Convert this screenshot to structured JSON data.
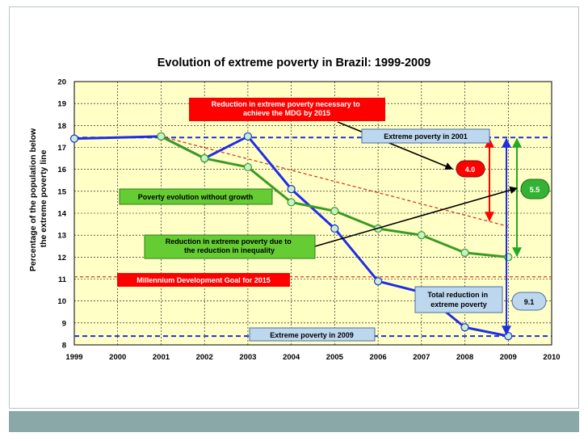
{
  "colors": {
    "plot_bg": "#ffffc6",
    "grid": "#000000",
    "blue_series": "#1f2ee6",
    "green_series": "#3a9b24",
    "red_dashed": "#d83a2a",
    "red_label_bg": "#ff0000",
    "green_label_bg": "#66cc33",
    "blue_label_bg": "#bdd7ee",
    "footer": "#8aa8a8"
  },
  "chart_data": {
    "type": "line",
    "title": "Evolution of extreme poverty in Brazil: 1999-2009",
    "ylabel_lines": [
      "Percentage of the population below",
      "the extreme poverty line"
    ],
    "xlabel": "",
    "xlim": [
      1999,
      2010
    ],
    "ylim": [
      8,
      20
    ],
    "grid": true,
    "x_ticks": [
      "1999",
      "2000",
      "2001",
      "2002",
      "2003",
      "2004",
      "2005",
      "2006",
      "2007",
      "2008",
      "2009",
      "2010"
    ],
    "y_ticks": [
      "8",
      "9",
      "10",
      "11",
      "12",
      "13",
      "14",
      "15",
      "16",
      "17",
      "18",
      "19",
      "20"
    ],
    "series": [
      {
        "style": "blue",
        "x": [
          1999,
          2001,
          2002,
          2003,
          2004,
          2005,
          2006,
          2007,
          2008,
          2009
        ],
        "values": [
          17.4,
          17.5,
          16.5,
          17.5,
          15.1,
          13.3,
          10.9,
          10.4,
          8.8,
          8.4
        ]
      },
      {
        "style": "green",
        "x": [
          2001,
          2002,
          2003,
          2004,
          2005,
          2006,
          2007,
          2008,
          2009
        ],
        "values": [
          17.5,
          16.5,
          16.1,
          14.5,
          14.1,
          13.3,
          13.0,
          12.2,
          12.0
        ]
      }
    ],
    "reference_lines": [
      {
        "style": "blue-dashed",
        "y": 17.45
      },
      {
        "style": "blue-dashed",
        "y": 8.4
      },
      {
        "style": "red-dashed",
        "y": 11.1
      },
      {
        "style": "red-dashed-diagonal",
        "x1": 2001,
        "y1": 17.5,
        "x2": 2009,
        "y2": 13.4
      }
    ],
    "annotations": {
      "mdg_reduction_lines": [
        "Reduction  in extreme poverty  necessary to",
        "achieve the MDG by 2015"
      ],
      "extreme_2001": "Extreme poverty  in 2001",
      "value_4": "4.0",
      "value_55": "5.5",
      "without_growth": "Poverty evolution without growth",
      "inequality_lines": [
        "Reduction in extreme poverty due to",
        "the reduction in inequality"
      ],
      "mdg_goal": "Millennium Development Goal  for 2015",
      "total_reduction_lines": [
        "Total  reduction  in",
        "extreme poverty"
      ],
      "value_91": "9.1",
      "extreme_2009": "Extreme poverty  in 2009"
    }
  }
}
